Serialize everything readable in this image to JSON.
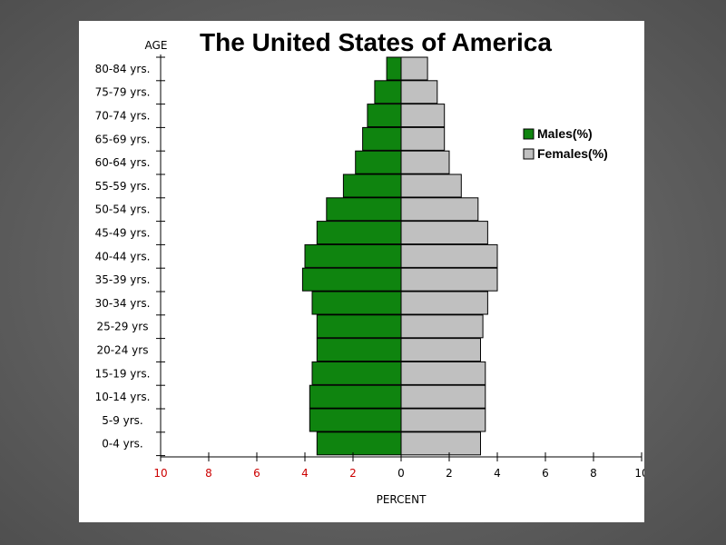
{
  "chart_data": {
    "type": "bar",
    "orientation": "horizontal",
    "title": "The United States of America",
    "ylabel": "AGE",
    "xlabel": "PERCENT",
    "categories": [
      "80-84 yrs.",
      "75-79 yrs.",
      "70-74 yrs.",
      "65-69 yrs.",
      "60-64 yrs.",
      "55-59 yrs.",
      "50-54 yrs.",
      "45-49 yrs.",
      "40-44 yrs.",
      "35-39 yrs.",
      "30-34 yrs.",
      "25-29 yrs",
      "20-24 yrs",
      "15-19 yrs.",
      "10-14 yrs.",
      "5-9 yrs.",
      "0-4 yrs."
    ],
    "series": [
      {
        "name": "Males(%)",
        "color": "#0f840f",
        "side": "left",
        "values": [
          0.6,
          1.1,
          1.4,
          1.6,
          1.9,
          2.4,
          3.1,
          3.5,
          4.0,
          4.1,
          3.7,
          3.5,
          3.5,
          3.7,
          3.8,
          3.8,
          3.5
        ]
      },
      {
        "name": "Females(%)",
        "color": "#c0c0c0",
        "side": "right",
        "values": [
          1.1,
          1.5,
          1.8,
          1.8,
          2.0,
          2.5,
          3.2,
          3.6,
          4.0,
          4.0,
          3.6,
          3.4,
          3.3,
          3.5,
          3.5,
          3.5,
          3.3
        ]
      }
    ],
    "x_ticks": [
      {
        "label": "10",
        "value": -10,
        "color": "#cc0000"
      },
      {
        "label": "8",
        "value": -8,
        "color": "#cc0000"
      },
      {
        "label": "6",
        "value": -6,
        "color": "#cc0000"
      },
      {
        "label": "4",
        "value": -4,
        "color": "#cc0000"
      },
      {
        "label": "2",
        "value": -2,
        "color": "#cc0000"
      },
      {
        "label": "0",
        "value": 0,
        "color": "#000000"
      },
      {
        "label": "2",
        "value": 2,
        "color": "#000000"
      },
      {
        "label": "4",
        "value": 4,
        "color": "#000000"
      },
      {
        "label": "6",
        "value": 6,
        "color": "#000000"
      },
      {
        "label": "8",
        "value": 8,
        "color": "#000000"
      },
      {
        "label": "10",
        "value": 10,
        "color": "#000000"
      }
    ],
    "xlim": [
      -10,
      10
    ],
    "grid": false,
    "legend_position": "right"
  }
}
